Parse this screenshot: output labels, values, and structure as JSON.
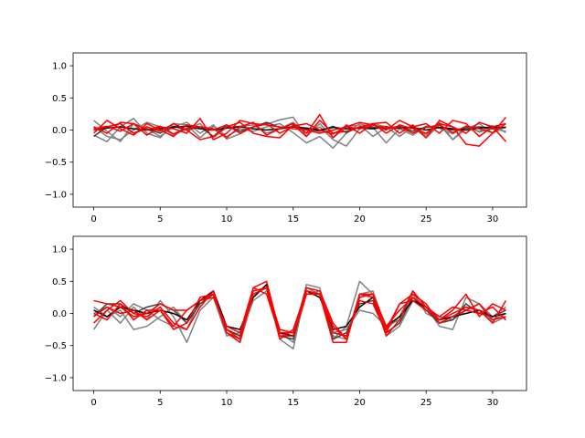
{
  "chart_data": [
    {
      "type": "line",
      "ylim": [
        -1.2,
        1.2
      ],
      "xlim": [
        -1.55,
        32.55
      ],
      "xticks": [
        0,
        5,
        10,
        15,
        20,
        25,
        30
      ],
      "yticks": [
        -1.0,
        -0.5,
        0.0,
        0.5,
        1.0
      ],
      "xtick_labels": [
        "0",
        "5",
        "10",
        "15",
        "20",
        "25",
        "30"
      ],
      "ytick_labels": [
        "−1.0",
        "−0.5",
        "0.0",
        "0.5",
        "1.0"
      ],
      "grid": false,
      "series": [
        {
          "color": "#808080",
          "values": [
            0.15,
            -0.02,
            -0.18,
            0.1,
            0.02,
            -0.1,
            0.05,
            0.12,
            -0.05,
            0.08,
            -0.14,
            -0.06,
            0.05,
            0.09,
            0.16,
            0.2,
            -0.1,
            0.1,
            -0.12,
            0.05,
            0.08,
            -0.1,
            0.04,
            0.02,
            -0.08,
            0.06,
            0.03,
            -0.06,
            0.05,
            -0.02,
            0.07,
            -0.04
          ]
        },
        {
          "color": "#808080",
          "values": [
            -0.08,
            -0.18,
            0.05,
            0.18,
            -0.05,
            -0.12,
            0.1,
            0.08,
            -0.12,
            0.06,
            -0.1,
            0.02,
            -0.02,
            0.05,
            0.1,
            -0.04,
            -0.2,
            -0.1,
            -0.28,
            -0.05,
            0.1,
            0.04,
            -0.2,
            0.02,
            0.05,
            -0.12,
            0.08,
            -0.15,
            0.06,
            -0.03,
            0.02,
            -0.02
          ]
        },
        {
          "color": "#808080",
          "values": [
            0.05,
            -0.1,
            -0.15,
            0.0,
            0.12,
            0.05,
            -0.08,
            0.02,
            0.1,
            -0.12,
            0.04,
            0.06,
            0.08,
            -0.05,
            0.02,
            0.12,
            -0.05,
            0.05,
            -0.15,
            -0.25,
            0.02,
            0.1,
            0.05,
            -0.1,
            0.05,
            -0.08,
            0.12,
            -0.15,
            0.02,
            0.1,
            -0.05,
            0.05
          ]
        },
        {
          "color": "#404040",
          "values": [
            -0.1,
            0.05,
            0.1,
            -0.05,
            0.02,
            -0.05,
            0.06,
            0.0,
            0.05,
            -0.1,
            0.08,
            -0.02,
            0.05,
            0.12,
            0.04,
            0.05,
            0.02,
            -0.02,
            0.06,
            -0.04,
            0.05,
            0.04,
            0.02,
            0.06,
            -0.02,
            0.05,
            0.04,
            0.0,
            0.03,
            0.05,
            0.02,
            0.04
          ]
        },
        {
          "color": "#000000",
          "values": [
            0.0,
            0.03,
            0.05,
            0.02,
            0.0,
            0.02,
            0.04,
            0.06,
            0.02,
            0.0,
            0.03,
            0.05,
            0.02,
            0.0,
            0.02,
            0.05,
            0.03,
            0.0,
            0.04,
            0.02,
            0.03,
            0.02,
            0.05,
            0.03,
            0.04,
            0.0,
            0.04,
            0.02,
            0.0,
            0.03,
            0.05,
            0.04
          ]
        },
        {
          "color": "#ff0000",
          "values": [
            0.05,
            -0.05,
            0.12,
            0.1,
            -0.08,
            0.05,
            0.02,
            -0.05,
            0.18,
            -0.15,
            -0.05,
            0.15,
            0.1,
            0.08,
            0.05,
            0.02,
            0.0,
            -0.05,
            0.0,
            0.05,
            0.12,
            0.08,
            0.0,
            0.15,
            0.05,
            0.1,
            -0.05,
            0.15,
            0.1,
            -0.1,
            0.05,
            -0.18
          ]
        },
        {
          "color": "#ff0000",
          "values": [
            -0.05,
            0.15,
            0.02,
            -0.08,
            0.1,
            0.0,
            -0.1,
            0.08,
            0.05,
            0.02,
            -0.12,
            0.05,
            0.12,
            -0.08,
            0.02,
            0.1,
            -0.05,
            0.24,
            -0.12,
            0.08,
            -0.05,
            0.1,
            0.12,
            -0.05,
            0.08,
            -0.12,
            0.15,
            0.05,
            -0.22,
            -0.25,
            -0.05,
            0.2
          ]
        },
        {
          "color": "#ff0000",
          "values": [
            0.02,
            0.06,
            -0.02,
            0.1,
            0.0,
            0.06,
            -0.06,
            0.03,
            0.05,
            0.0,
            0.08,
            -0.05,
            0.05,
            0.1,
            -0.05,
            0.06,
            0.1,
            0.0,
            -0.06,
            0.05,
            0.02,
            0.07,
            0.04,
            0.05,
            -0.05,
            0.04,
            0.08,
            -0.04,
            0.06,
            0.02,
            -0.04,
            0.1
          ]
        },
        {
          "color": "#ff0000",
          "values": [
            0.0,
            0.05,
            0.1,
            -0.05,
            0.05,
            -0.02,
            0.1,
            0.0,
            -0.15,
            -0.1,
            0.05,
            0.12,
            -0.05,
            -0.1,
            -0.12,
            0.08,
            -0.1,
            0.15,
            -0.05,
            -0.02,
            0.05,
            0.1,
            -0.05,
            0.08,
            0.02,
            -0.05,
            0.1,
            0.05,
            -0.05,
            0.12,
            0.05,
            0.1
          ]
        }
      ]
    },
    {
      "type": "line",
      "ylim": [
        -1.2,
        1.2
      ],
      "xlim": [
        -1.55,
        32.55
      ],
      "xticks": [
        0,
        5,
        10,
        15,
        20,
        25,
        30
      ],
      "yticks": [
        -1.0,
        -0.5,
        0.0,
        0.5,
        1.0
      ],
      "xtick_labels": [
        "0",
        "5",
        "10",
        "15",
        "20",
        "25",
        "30"
      ],
      "ytick_labels": [
        "−1.0",
        "−0.5",
        "0.0",
        "0.5",
        "1.0"
      ],
      "grid": false,
      "series": [
        {
          "color": "#808080",
          "values": [
            -0.25,
            0.05,
            -0.15,
            0.1,
            -0.1,
            0.2,
            -0.05,
            -0.45,
            0.05,
            0.25,
            -0.35,
            -0.3,
            0.3,
            0.4,
            -0.4,
            -0.55,
            0.4,
            0.3,
            -0.4,
            -0.2,
            0.5,
            0.3,
            -0.35,
            -0.2,
            0.2,
            0.1,
            -0.2,
            -0.25,
            0.25,
            0.15,
            -0.15,
            -0.05
          ]
        },
        {
          "color": "#808080",
          "values": [
            0.1,
            -0.05,
            0.05,
            -0.25,
            -0.2,
            -0.05,
            0.1,
            -0.15,
            0.15,
            0.3,
            -0.25,
            -0.35,
            0.2,
            0.35,
            -0.35,
            -0.4,
            0.45,
            0.4,
            -0.35,
            -0.4,
            0.3,
            0.35,
            -0.25,
            -0.05,
            0.35,
            0.0,
            -0.1,
            -0.05,
            0.1,
            0.05,
            -0.1,
            0.0
          ]
        },
        {
          "color": "#808080",
          "values": [
            0.0,
            0.1,
            -0.05,
            0.15,
            0.05,
            -0.1,
            -0.2,
            -0.25,
            0.2,
            0.35,
            -0.3,
            -0.45,
            0.25,
            0.45,
            -0.3,
            -0.45,
            0.3,
            0.35,
            -0.3,
            -0.25,
            0.05,
            0.0,
            -0.2,
            -0.1,
            0.3,
            0.05,
            -0.05,
            -0.1,
            0.05,
            0.15,
            -0.05,
            0.1
          ]
        },
        {
          "color": "#404040",
          "values": [
            -0.05,
            0.15,
            0.15,
            0.0,
            0.1,
            0.15,
            0.05,
            -0.15,
            0.15,
            0.3,
            -0.25,
            -0.35,
            0.3,
            0.4,
            -0.35,
            -0.4,
            0.35,
            0.3,
            -0.4,
            -0.3,
            0.15,
            0.2,
            -0.3,
            -0.15,
            0.25,
            0.05,
            -0.15,
            -0.1,
            0.15,
            0.0,
            -0.05,
            0.05
          ]
        },
        {
          "color": "#000000",
          "values": [
            0.05,
            -0.05,
            0.1,
            0.05,
            0.0,
            0.05,
            0.0,
            -0.1,
            0.2,
            0.35,
            -0.2,
            -0.25,
            0.25,
            0.45,
            -0.3,
            -0.35,
            0.35,
            0.25,
            -0.25,
            -0.2,
            0.1,
            0.25,
            -0.2,
            -0.05,
            0.2,
            0.1,
            -0.1,
            -0.05,
            0.0,
            0.05,
            -0.05,
            0.0
          ]
        },
        {
          "color": "#ff0000",
          "values": [
            0.2,
            0.15,
            0.1,
            -0.05,
            0.0,
            0.15,
            0.05,
            0.05,
            0.2,
            0.25,
            -0.2,
            -0.3,
            0.4,
            0.5,
            -0.3,
            -0.3,
            0.4,
            0.35,
            -0.15,
            -0.4,
            0.3,
            0.3,
            -0.25,
            0.15,
            0.2,
            0.05,
            -0.1,
            0.05,
            0.3,
            -0.05,
            0.15,
            0.05
          ]
        },
        {
          "color": "#ff0000",
          "values": [
            -0.15,
            0.05,
            0.2,
            0.0,
            -0.05,
            0.1,
            -0.15,
            -0.25,
            0.1,
            0.35,
            -0.3,
            -0.45,
            0.4,
            0.3,
            -0.35,
            -0.35,
            0.3,
            0.3,
            -0.45,
            -0.45,
            0.3,
            0.25,
            -0.35,
            -0.1,
            0.35,
            0.1,
            -0.1,
            0.0,
            0.1,
            0.05,
            -0.15,
            0.2
          ]
        },
        {
          "color": "#ff0000",
          "values": [
            0.0,
            -0.1,
            0.15,
            -0.1,
            0.05,
            0.05,
            -0.25,
            -0.15,
            0.25,
            0.3,
            -0.25,
            -0.4,
            0.35,
            0.4,
            -0.25,
            -0.3,
            0.35,
            0.3,
            -0.3,
            -0.35,
            0.2,
            0.15,
            -0.3,
            0.15,
            0.3,
            0.15,
            -0.15,
            -0.05,
            0.05,
            0.15,
            -0.1,
            -0.05
          ]
        },
        {
          "color": "#ff0000",
          "values": [
            -0.05,
            0.1,
            0.0,
            0.05,
            -0.1,
            0.05,
            -0.2,
            0.05,
            0.2,
            0.3,
            -0.3,
            -0.4,
            0.3,
            0.4,
            -0.4,
            -0.25,
            0.35,
            0.3,
            -0.2,
            -0.4,
            0.25,
            0.3,
            -0.2,
            0.05,
            0.25,
            0.1,
            -0.05,
            0.1,
            0.05,
            0.0,
            0.1,
            -0.1
          ]
        }
      ]
    }
  ]
}
